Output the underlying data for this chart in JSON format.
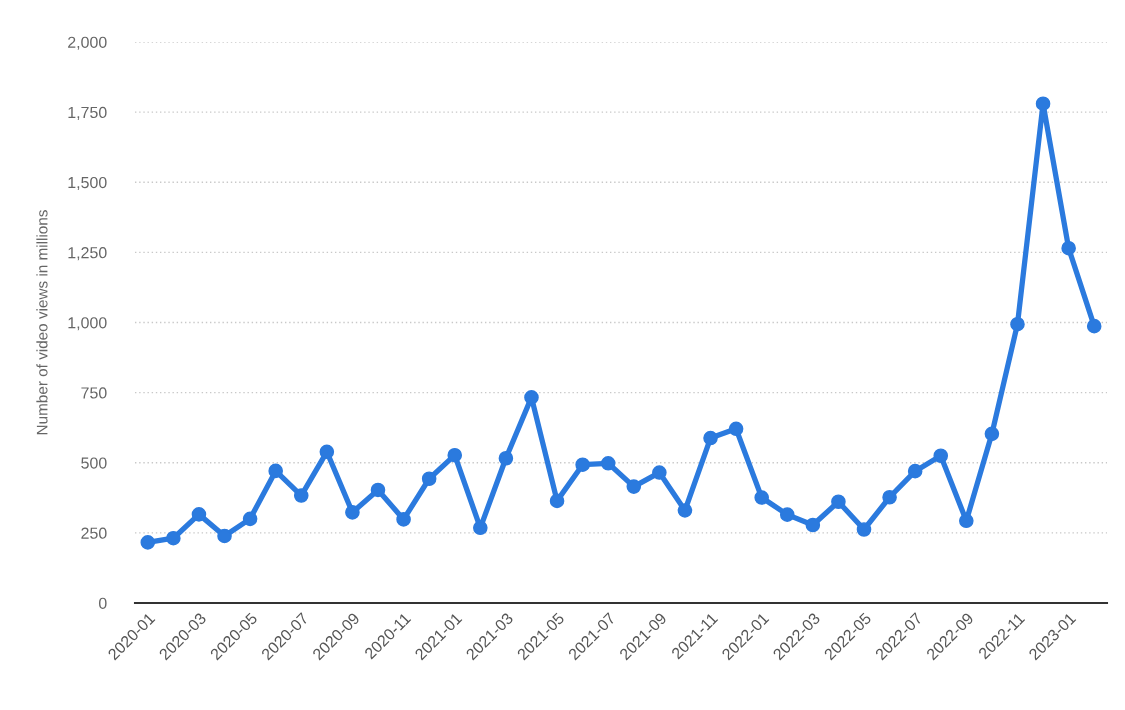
{
  "chart_data": {
    "type": "line",
    "ylabel": "Number of video views in millions",
    "categories": [
      "2020-01",
      null,
      "2020-03",
      null,
      "2020-05",
      null,
      "2020-07",
      null,
      "2020-09",
      null,
      "2020-11",
      null,
      "2021-01",
      null,
      "2021-03",
      null,
      "2021-05",
      null,
      "2021-07",
      null,
      "2021-09",
      null,
      "2021-11",
      null,
      "2022-01",
      null,
      "2022-03",
      null,
      "2022-05",
      null,
      "2022-07",
      null,
      "2022-09",
      null,
      "2022-11",
      null,
      "2023-01",
      null
    ],
    "series": [
      {
        "color": "#2b7ade",
        "values": [
          216,
          231,
          316,
          239,
          300,
          471,
          383,
          539,
          323,
          403,
          298,
          443,
          527,
          268,
          516,
          733,
          364,
          493,
          498,
          415,
          465,
          330,
          588,
          621,
          376,
          315,
          278,
          361,
          262,
          377,
          470,
          525,
          293,
          603,
          994,
          1780,
          1265,
          987
        ]
      }
    ],
    "ylim": [
      0,
      2000
    ],
    "yticks": [
      0,
      250,
      500,
      750,
      {
        "value": 1000,
        "label": "1,000"
      },
      {
        "value": 1250,
        "label": "1,250"
      },
      {
        "value": 1500,
        "label": "1,500"
      },
      {
        "value": 1750,
        "label": "1,750"
      },
      {
        "value": 2000,
        "label": "2,000"
      }
    ],
    "grid": "y",
    "marker": "circle",
    "line_style": "solid"
  }
}
